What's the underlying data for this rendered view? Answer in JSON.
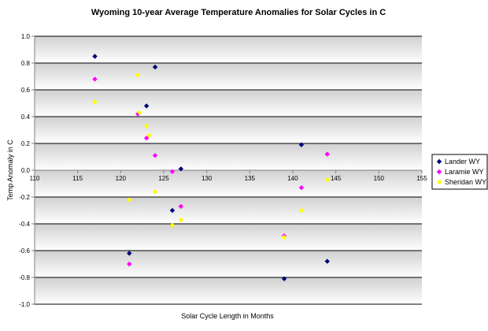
{
  "chart_data": {
    "type": "scatter",
    "title": "Wyoming 10-year Average Temperature Anomalies for Solar Cycles in C",
    "xlabel": "Solar Cycle Length in Months",
    "ylabel": "Temp Anomaly in C",
    "xlim": [
      110,
      155
    ],
    "ylim": [
      -1.0,
      1.0
    ],
    "xticks": [
      "110",
      "115",
      "120",
      "125",
      "130",
      "135",
      "140",
      "145",
      "150",
      "155"
    ],
    "yticks": [
      "1.0",
      "0.8",
      "0.6",
      "0.4",
      "0.2",
      "0.0",
      "-0.2",
      "-0.4",
      "-0.6",
      "-0.8",
      "-1.0"
    ],
    "legend_position": "right",
    "series": [
      {
        "name": "Lander WY",
        "color": "#000080",
        "marker": "diamond",
        "points": [
          [
            117,
            0.85
          ],
          [
            121,
            -0.62
          ],
          [
            123,
            0.48
          ],
          [
            124,
            0.77
          ],
          [
            126,
            -0.3
          ],
          [
            127,
            0.01
          ],
          [
            139,
            -0.81
          ],
          [
            141,
            0.19
          ],
          [
            144,
            -0.68
          ]
        ]
      },
      {
        "name": "Laramie WY",
        "color": "#ff00ff",
        "marker": "diamond",
        "points": [
          [
            117,
            0.68
          ],
          [
            121,
            -0.7
          ],
          [
            122,
            0.42
          ],
          [
            123,
            0.24
          ],
          [
            124,
            0.11
          ],
          [
            126,
            -0.01
          ],
          [
            127,
            -0.27
          ],
          [
            139,
            -0.49
          ],
          [
            141,
            -0.13
          ],
          [
            144,
            0.12
          ]
        ]
      },
      {
        "name": "Sheridan WY",
        "color": "#ffff00",
        "marker": "diamond",
        "points": [
          [
            117,
            0.51
          ],
          [
            121,
            -0.22
          ],
          [
            122,
            0.71
          ],
          [
            122.2,
            0.43
          ],
          [
            123,
            0.33
          ],
          [
            123.3,
            0.26
          ],
          [
            124,
            -0.16
          ],
          [
            126,
            -0.41
          ],
          [
            127,
            -0.37
          ],
          [
            139,
            -0.5
          ],
          [
            141,
            -0.3
          ],
          [
            144,
            -0.07
          ]
        ]
      }
    ]
  }
}
